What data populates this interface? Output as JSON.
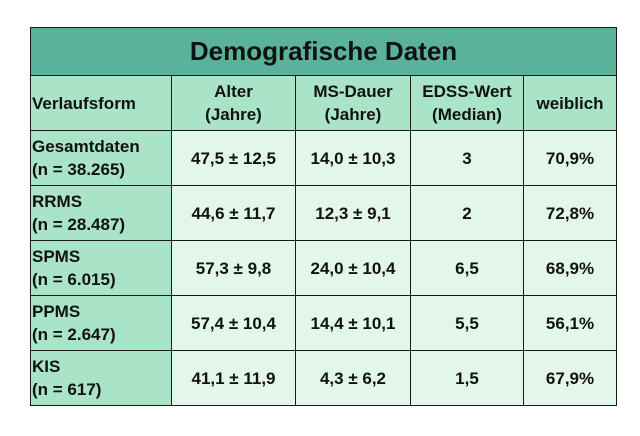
{
  "title": "Demografische Daten",
  "headers": {
    "col1": "Verlaufsform",
    "col2": [
      "Alter",
      "(Jahre)"
    ],
    "col3": [
      "MS-Dauer",
      "(Jahre)"
    ],
    "col4": [
      "EDSS-Wert",
      "(Median)"
    ],
    "col5": "weiblich"
  },
  "rows": [
    {
      "form": "Gesamtdaten",
      "n": "(n = 38.265)",
      "alter": "47,5 ± 12,5",
      "dauer": "14,0 ± 10,3",
      "edss": "3",
      "weiblich": "70,9%"
    },
    {
      "form": "RRMS",
      "n": "(n = 28.487)",
      "alter": "44,6 ± 11,7",
      "dauer": "12,3 ± 9,1",
      "edss": "2",
      "weiblich": "72,8%"
    },
    {
      "form": "SPMS",
      "n": "(n = 6.015)",
      "alter": "57,3 ± 9,8",
      "dauer": "24,0 ± 10,4",
      "edss": "6,5",
      "weiblich": "68,9%"
    },
    {
      "form": "PPMS",
      "n": "(n = 2.647)",
      "alter": "57,4 ± 10,4",
      "dauer": "14,4 ± 10,1",
      "edss": "5,5",
      "weiblich": "56,1%"
    },
    {
      "form": "KIS",
      "n": "(n = 617)",
      "alter": "41,1 ± 11,9",
      "dauer": "4,3 ± 6,2",
      "edss": "1,5",
      "weiblich": "67,9%"
    }
  ],
  "colors": {
    "title_bg": "#5ab29a",
    "header_bg": "#a9e4c8",
    "cell_bg": "#e3f6ea",
    "border": "#1a1a1a"
  }
}
